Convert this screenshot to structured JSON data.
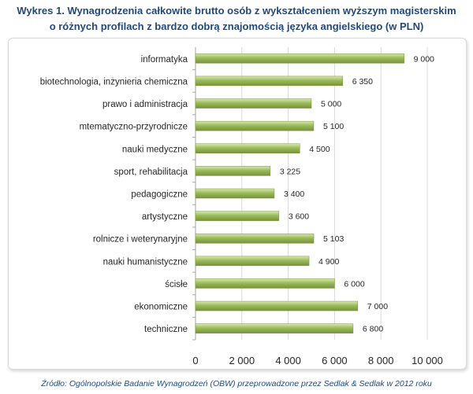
{
  "chart_data": {
    "type": "bar",
    "orientation": "horizontal",
    "title_line1": "Wykres 1. Wynagrodzenia całkowite brutto osób z wykształceniem wyższym magisterskim",
    "title_line2": "o różnych profilach z bardzo dobrą znajomością języka angielskiego (w PLN)",
    "categories": [
      "informatyka",
      "biotechnologia, inżynieria chemiczna",
      "prawo i administracja",
      "mtematyczno-przyrodnicze",
      "nauki medyczne",
      "sport, rehabilitacja",
      "pedagogiczne",
      "artystyczne",
      "rolnicze i weterynaryjne",
      "nauki humanistyczne",
      "ścisłe",
      "ekonomiczne",
      "techniczne"
    ],
    "values": [
      9000,
      6350,
      5000,
      5100,
      4500,
      3225,
      3400,
      3600,
      5103,
      4900,
      6000,
      7000,
      6800
    ],
    "value_labels": [
      "9 000",
      "6 350",
      "5 000",
      "5 100",
      "4 500",
      "3 225",
      "3 400",
      "3 600",
      "5 103",
      "4 900",
      "6 000",
      "7 000",
      "6 800"
    ],
    "xlim": [
      0,
      10000
    ],
    "xticks": [
      0,
      2000,
      4000,
      6000,
      8000,
      10000
    ],
    "xtick_labels": [
      "0",
      "2 000",
      "4 000",
      "6 000",
      "8 000",
      "10 000"
    ],
    "grid": true,
    "legend": "none",
    "bar_color": "#9bbb59",
    "title_color": "#1f497d"
  },
  "source_note": "Źródło: Ogólnopolskie Badanie Wynagrodzeń (OBW) przeprowadzone przez Sedlak & Sedlak w 2012 roku"
}
